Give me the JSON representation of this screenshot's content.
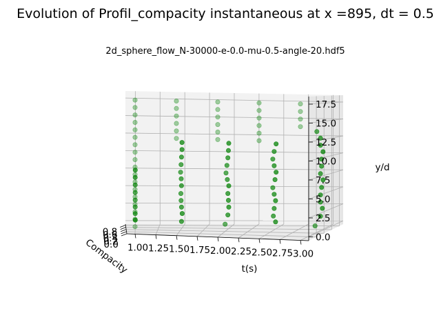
{
  "chart_data": {
    "type": "scatter",
    "title": "Evolution of Profil_compacity instantaneous at x =895, dt = 0.5",
    "subtitle": "2d_sphere_flow_N-30000-e-0.0-mu-0.5-angle-20.hdf5",
    "xlabel": "t(s)",
    "ylabel": "Compacity",
    "zlabel": "y/d",
    "x_ticks": [
      "1.00",
      "1.25",
      "1.50",
      "1.75",
      "2.00",
      "2.25",
      "2.50",
      "2.75",
      "3.00"
    ],
    "y_ticks": [
      "0.0",
      "0.2",
      "0.4",
      "0.6",
      "0.8"
    ],
    "z_ticks": [
      "0.0",
      "2.5",
      "5.0",
      "7.5",
      "10.0",
      "12.5",
      "15.0",
      "17.5"
    ],
    "xlim": [
      0.9,
      3.1
    ],
    "ylim": [
      0.0,
      0.9
    ],
    "zlim": [
      -0.5,
      18.5
    ],
    "grid": true,
    "marker_color": "#008000",
    "series": [
      {
        "t": 1.0,
        "points": [
          [
            0.62,
            0.5
          ],
          [
            0.55,
            1.5
          ],
          [
            0.5,
            2.5
          ],
          [
            0.47,
            3.5
          ],
          [
            0.5,
            4.5
          ],
          [
            0.55,
            5.5
          ],
          [
            0.6,
            6.5
          ],
          [
            0.62,
            7.5
          ],
          [
            0.0,
            0.5
          ],
          [
            0.0,
            1.5
          ],
          [
            0.0,
            2.5
          ],
          [
            0.0,
            3.5
          ],
          [
            0.0,
            4.5
          ],
          [
            0.0,
            5.5
          ],
          [
            0.0,
            6.5
          ],
          [
            0.0,
            7.5
          ],
          [
            0.0,
            8.5
          ],
          [
            0.0,
            9.5
          ],
          [
            0.0,
            10.5
          ],
          [
            0.0,
            11.5
          ],
          [
            0.0,
            12.5
          ],
          [
            0.0,
            13.5
          ],
          [
            0.0,
            14.5
          ],
          [
            0.0,
            15.5
          ],
          [
            0.0,
            16.5
          ],
          [
            0.0,
            17.5
          ]
        ]
      },
      {
        "t": 1.5,
        "points": [
          [
            0.55,
            0.5
          ],
          [
            0.62,
            1.5
          ],
          [
            0.55,
            2.5
          ],
          [
            0.5,
            3.5
          ],
          [
            0.48,
            4.5
          ],
          [
            0.55,
            5.5
          ],
          [
            0.52,
            6.5
          ],
          [
            0.45,
            7.5
          ],
          [
            0.5,
            8.5
          ],
          [
            0.55,
            9.5
          ],
          [
            0.6,
            10.5
          ],
          [
            0.6,
            11.5
          ],
          [
            0.0,
            12.5
          ],
          [
            0.0,
            13.5
          ],
          [
            0.0,
            14.5
          ],
          [
            0.0,
            15.5
          ],
          [
            0.0,
            16.5
          ],
          [
            0.0,
            17.5
          ]
        ]
      },
      {
        "t": 2.0,
        "points": [
          [
            0.4,
            0.5
          ],
          [
            0.55,
            1.5
          ],
          [
            0.6,
            2.5
          ],
          [
            0.58,
            3.5
          ],
          [
            0.55,
            4.5
          ],
          [
            0.6,
            5.5
          ],
          [
            0.52,
            6.5
          ],
          [
            0.45,
            7.5
          ],
          [
            0.5,
            8.5
          ],
          [
            0.55,
            9.5
          ],
          [
            0.58,
            10.5
          ],
          [
            0.6,
            11.5
          ],
          [
            0.0,
            12.5
          ],
          [
            0.0,
            13.5
          ],
          [
            0.0,
            14.5
          ],
          [
            0.0,
            15.5
          ],
          [
            0.0,
            16.5
          ],
          [
            0.0,
            17.5
          ]
        ]
      },
      {
        "t": 2.5,
        "points": [
          [
            0.6,
            0.5
          ],
          [
            0.52,
            1.5
          ],
          [
            0.55,
            2.5
          ],
          [
            0.6,
            3.5
          ],
          [
            0.55,
            4.5
          ],
          [
            0.5,
            5.5
          ],
          [
            0.58,
            6.5
          ],
          [
            0.62,
            7.5
          ],
          [
            0.55,
            8.5
          ],
          [
            0.5,
            9.5
          ],
          [
            0.55,
            10.5
          ],
          [
            0.62,
            11.5
          ],
          [
            0.0,
            12.5
          ],
          [
            0.0,
            13.5
          ],
          [
            0.0,
            14.5
          ],
          [
            0.0,
            15.5
          ],
          [
            0.0,
            16.5
          ],
          [
            0.0,
            17.5
          ]
        ]
      },
      {
        "t": 3.0,
        "points": [
          [
            0.4,
            0.5
          ],
          [
            0.55,
            1.5
          ],
          [
            0.6,
            2.5
          ],
          [
            0.55,
            3.5
          ],
          [
            0.55,
            4.5
          ],
          [
            0.58,
            5.5
          ],
          [
            0.62,
            6.5
          ],
          [
            0.55,
            7.5
          ],
          [
            0.58,
            8.5
          ],
          [
            0.58,
            9.5
          ],
          [
            0.62,
            10.5
          ],
          [
            0.55,
            11.5
          ],
          [
            0.55,
            12.5
          ],
          [
            0.45,
            13.5
          ],
          [
            0.0,
            14.5
          ],
          [
            0.0,
            15.5
          ],
          [
            0.0,
            16.5
          ],
          [
            0.0,
            17.5
          ]
        ]
      }
    ]
  }
}
